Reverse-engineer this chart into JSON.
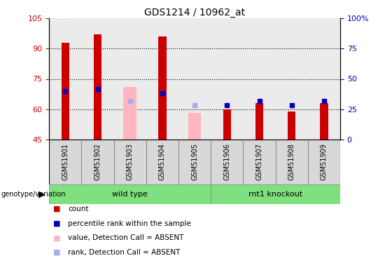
{
  "title": "GDS1214 / 10962_at",
  "samples": [
    "GSM51901",
    "GSM51902",
    "GSM51903",
    "GSM51904",
    "GSM51905",
    "GSM51906",
    "GSM51907",
    "GSM51908",
    "GSM51909"
  ],
  "ylim_left": [
    45,
    105
  ],
  "ylim_right": [
    0,
    100
  ],
  "yticks_left": [
    45,
    60,
    75,
    90,
    105
  ],
  "yticks_right": [
    0,
    25,
    50,
    75,
    100
  ],
  "ytick_right_labels": [
    "0",
    "25",
    "50",
    "75",
    "100%"
  ],
  "groups": [
    {
      "label": "wild type",
      "start": 0,
      "end": 5,
      "color": "#7EE07E"
    },
    {
      "label": "rnt1 knockout",
      "start": 5,
      "end": 9,
      "color": "#7EE07E"
    }
  ],
  "red_bars": [
    93,
    97,
    45,
    96,
    45,
    60,
    63,
    59,
    63
  ],
  "red_bar_color": "#CC0000",
  "pink_bars": [
    45,
    45,
    71,
    45,
    58,
    45,
    45,
    45,
    45
  ],
  "pink_bar_color": "#FFB6C1",
  "blue_squares_y": [
    69,
    70,
    45,
    68,
    45,
    62,
    64,
    62,
    64
  ],
  "blue_square_color": "#0000BB",
  "light_blue_squares_y": [
    45,
    45,
    64,
    45,
    62,
    45,
    45,
    45,
    45
  ],
  "light_blue_square_color": "#AAAAEE",
  "grid_yticks": [
    60,
    75,
    90
  ],
  "red_bar_width": 0.25,
  "pink_bar_width": 0.4,
  "left_tick_color": "#CC0000",
  "right_tick_color": "#0000BB",
  "col_bg_color": "#D8D8D8",
  "legend_items": [
    {
      "label": "count",
      "color": "#CC0000"
    },
    {
      "label": "percentile rank within the sample",
      "color": "#0000BB"
    },
    {
      "label": "value, Detection Call = ABSENT",
      "color": "#FFB6C1"
    },
    {
      "label": "rank, Detection Call = ABSENT",
      "color": "#AAAAEE"
    }
  ],
  "genotype_label": "genotype/variation",
  "fig_width": 5.4,
  "fig_height": 3.75,
  "dpi": 100
}
